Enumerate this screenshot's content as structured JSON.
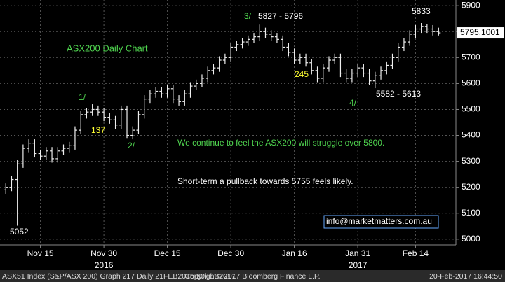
{
  "chart_data": {
    "type": "ohlc",
    "title": "ASX200 Daily Chart",
    "categories": [
      null,
      null,
      null,
      null,
      null,
      null,
      null,
      null,
      null,
      null,
      null,
      null,
      null,
      null,
      null,
      null,
      null,
      null,
      null,
      null,
      null,
      null,
      null,
      null,
      null,
      null,
      null,
      null,
      null,
      null,
      null,
      null,
      null,
      null,
      null,
      null,
      null,
      null,
      null,
      null,
      null,
      null,
      null,
      null,
      null,
      null,
      null,
      null,
      null,
      null,
      null,
      null,
      null,
      null,
      null,
      null,
      null,
      null,
      null,
      null,
      null,
      null,
      null,
      null,
      null,
      null,
      null,
      null,
      null,
      null,
      null,
      null,
      null,
      null,
      null,
      null
    ],
    "open": [
      5190,
      5200,
      5230,
      5290,
      5350,
      5370,
      5330,
      5320,
      5340,
      5310,
      5340,
      5350,
      5360,
      5420,
      5480,
      5490,
      5500,
      5490,
      5470,
      5460,
      5440,
      5500,
      5400,
      5420,
      5480,
      5540,
      5560,
      5570,
      5560,
      5580,
      5540,
      5530,
      5560,
      5590,
      5600,
      5620,
      5650,
      5660,
      5690,
      5700,
      5740,
      5750,
      5760,
      5770,
      5780,
      5800,
      5790,
      5780,
      5770,
      5740,
      5720,
      5690,
      5700,
      5680,
      5650,
      5620,
      5660,
      5690,
      5700,
      5640,
      5620,
      5640,
      5660,
      5640,
      5610,
      5630,
      5650,
      5670,
      5700,
      5740,
      5760,
      5790,
      5810,
      5820,
      5810,
      5800
    ],
    "high": [
      5215,
      5245,
      5305,
      5365,
      5385,
      5385,
      5345,
      5355,
      5355,
      5355,
      5365,
      5375,
      5435,
      5495,
      5505,
      5520,
      5515,
      5505,
      5485,
      5475,
      5515,
      5515,
      5435,
      5495,
      5555,
      5575,
      5585,
      5585,
      5595,
      5595,
      5555,
      5575,
      5605,
      5615,
      5635,
      5665,
      5675,
      5705,
      5715,
      5755,
      5765,
      5775,
      5785,
      5795,
      5827,
      5815,
      5805,
      5795,
      5785,
      5755,
      5735,
      5715,
      5715,
      5695,
      5665,
      5675,
      5705,
      5715,
      5715,
      5655,
      5655,
      5675,
      5675,
      5655,
      5645,
      5665,
      5685,
      5715,
      5755,
      5775,
      5805,
      5825,
      5833,
      5830,
      5825,
      5815
    ],
    "low": [
      5175,
      5185,
      5052,
      5275,
      5335,
      5315,
      5305,
      5305,
      5295,
      5295,
      5325,
      5335,
      5345,
      5405,
      5465,
      5475,
      5475,
      5455,
      5445,
      5425,
      5425,
      5390,
      5385,
      5405,
      5465,
      5525,
      5545,
      5545,
      5545,
      5525,
      5515,
      5515,
      5545,
      5575,
      5585,
      5605,
      5635,
      5645,
      5675,
      5685,
      5725,
      5735,
      5745,
      5755,
      5765,
      5775,
      5765,
      5755,
      5725,
      5705,
      5675,
      5675,
      5665,
      5635,
      5605,
      5605,
      5645,
      5675,
      5625,
      5605,
      5605,
      5625,
      5625,
      5595,
      5582,
      5615,
      5635,
      5655,
      5685,
      5725,
      5745,
      5775,
      5795,
      5795,
      5785,
      5785
    ],
    "close": [
      5200,
      5230,
      5290,
      5350,
      5370,
      5330,
      5320,
      5340,
      5310,
      5340,
      5350,
      5360,
      5420,
      5480,
      5490,
      5500,
      5490,
      5470,
      5460,
      5440,
      5500,
      5400,
      5420,
      5480,
      5540,
      5560,
      5570,
      5560,
      5580,
      5540,
      5530,
      5560,
      5590,
      5600,
      5620,
      5650,
      5660,
      5690,
      5700,
      5740,
      5750,
      5760,
      5770,
      5780,
      5800,
      5790,
      5780,
      5770,
      5740,
      5720,
      5690,
      5700,
      5680,
      5650,
      5620,
      5660,
      5690,
      5700,
      5640,
      5620,
      5640,
      5660,
      5640,
      5610,
      5630,
      5650,
      5670,
      5700,
      5740,
      5760,
      5790,
      5810,
      5820,
      5810,
      5800,
      5795.1001
    ],
    "color": "#eeeeee",
    "xlim": [
      -1,
      78
    ],
    "xticks": [
      {
        "value": 6,
        "label": "Nov 15"
      },
      {
        "value": 17,
        "label": "Nov 30"
      },
      {
        "value": 28,
        "label": "Dec 15"
      },
      {
        "value": 39,
        "label": "Dec 30"
      },
      {
        "value": 50,
        "label": "Jan 16"
      },
      {
        "value": 61,
        "label": "Jan 31"
      },
      {
        "value": 71,
        "label": "Feb 14"
      }
    ],
    "years": [
      "2016",
      "2017"
    ],
    "ylim": [
      4978,
      5922
    ],
    "yticks": [
      5000,
      5100,
      5200,
      5300,
      5400,
      5500,
      5600,
      5700,
      5800,
      5900
    ],
    "grid": true,
    "annotations": [
      "5052",
      "1/",
      "137",
      "2/",
      "3/",
      "5827 - 5796",
      "245",
      "4/",
      "5582 - 5613",
      "5833",
      "We continue to feel the ASX200 will struggle over 5800.",
      "Short-term a pullback towards 5755 feels likely.",
      "info@marketmatters.com.au"
    ],
    "footer": [
      "ASX51 Index (S&P/ASX 200) Graph 217  Daily 21FEB2015-20FEB2017",
      "Copyright© 2017 Bloomberg Finance L.P.",
      "20-Feb-2017 16:44:50"
    ]
  }
}
